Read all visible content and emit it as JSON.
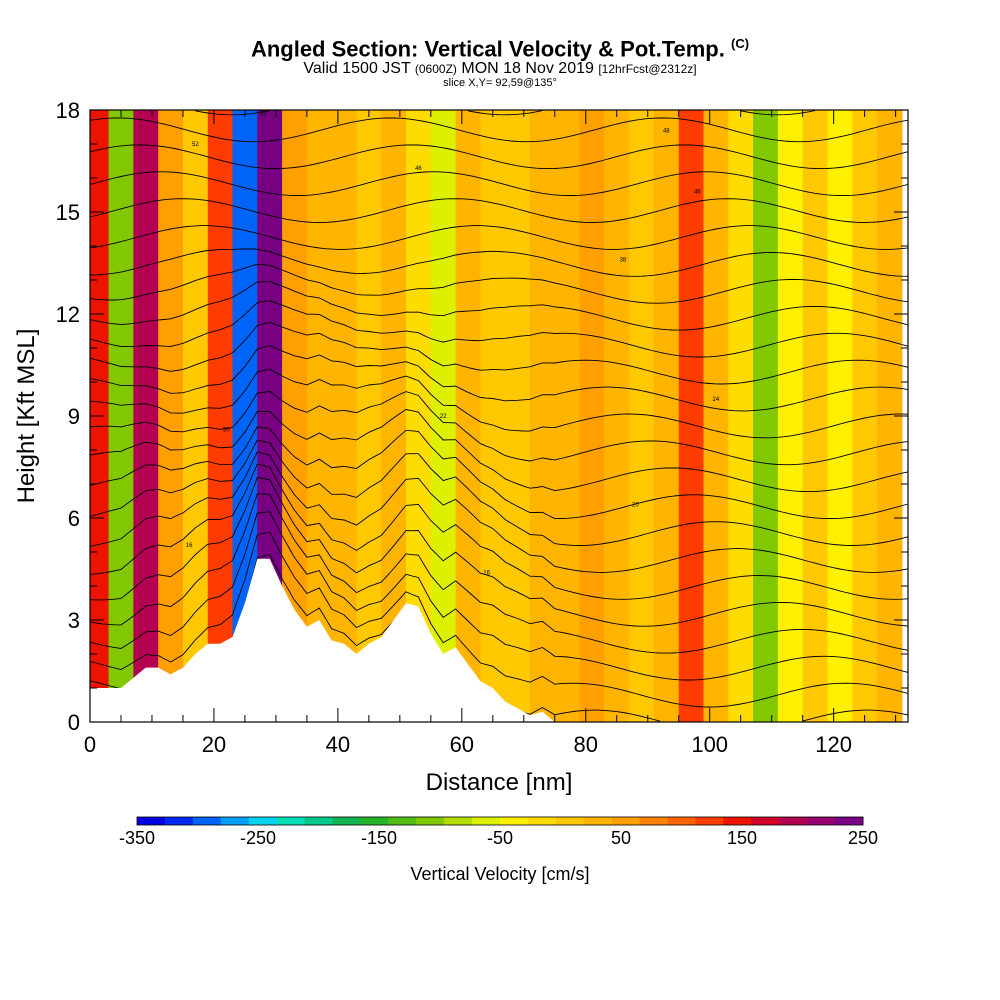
{
  "chart_data": {
    "type": "heatmap",
    "title": "Angled Section: Vertical Velocity & Pot.Temp.",
    "title_tag": "(C)",
    "subtitle_valid": "Valid 1500 JST",
    "subtitle_utc": "(0600Z)",
    "subtitle_date": "MON 18 Nov 2019",
    "subtitle_fcst": "[12hrFcst@2312z]",
    "slice": "slice X,Y= 92,59@135°",
    "xlabel": "Distance [nm]",
    "ylabel": "Height [Kft MSL]",
    "xlim": [
      0,
      132
    ],
    "ylim": [
      0,
      18
    ],
    "x_ticks": [
      0,
      20,
      40,
      60,
      80,
      100,
      120
    ],
    "y_ticks": [
      0,
      3,
      6,
      9,
      12,
      15,
      18
    ],
    "colorbar": {
      "label": "Vertical Velocity [cm/s]",
      "min": -350,
      "max": 250,
      "ticks": [
        -350,
        -250,
        -150,
        -50,
        50,
        150,
        250
      ],
      "colors": [
        "#0000e0",
        "#0028f0",
        "#0064f8",
        "#00a0f8",
        "#00d2f0",
        "#00dcb4",
        "#00c88c",
        "#10b450",
        "#28b428",
        "#50bc14",
        "#82c800",
        "#b4dc00",
        "#dcf000",
        "#fff000",
        "#ffdc00",
        "#ffc800",
        "#ffb400",
        "#ffa000",
        "#ff8200",
        "#ff6400",
        "#ff3c00",
        "#ec1400",
        "#d20028",
        "#b40050",
        "#96006e",
        "#780082"
      ]
    },
    "velocity_columns": [
      {
        "x": 1,
        "v": 150
      },
      {
        "x": 5,
        "v": -100
      },
      {
        "x": 9,
        "v": 190
      },
      {
        "x": 13,
        "v": 60
      },
      {
        "x": 17,
        "v": 0
      },
      {
        "x": 21,
        "v": 120
      },
      {
        "x": 25,
        "v": -300
      },
      {
        "x": 29,
        "v": 240
      },
      {
        "x": 33,
        "v": 60
      },
      {
        "x": 37,
        "v": 40
      },
      {
        "x": 41,
        "v": 30
      },
      {
        "x": 45,
        "v": 10
      },
      {
        "x": 49,
        "v": 20
      },
      {
        "x": 53,
        "v": -20
      },
      {
        "x": 57,
        "v": -60
      },
      {
        "x": 61,
        "v": 20
      },
      {
        "x": 65,
        "v": 0
      },
      {
        "x": 69,
        "v": 10
      },
      {
        "x": 73,
        "v": 20
      },
      {
        "x": 77,
        "v": 30
      },
      {
        "x": 81,
        "v": 60
      },
      {
        "x": 85,
        "v": 20
      },
      {
        "x": 89,
        "v": 0
      },
      {
        "x": 93,
        "v": 40
      },
      {
        "x": 97,
        "v": 120
      },
      {
        "x": 101,
        "v": 20
      },
      {
        "x": 105,
        "v": -20
      },
      {
        "x": 109,
        "v": -100
      },
      {
        "x": 113,
        "v": -30
      },
      {
        "x": 117,
        "v": 10
      },
      {
        "x": 121,
        "v": -40
      },
      {
        "x": 125,
        "v": 10
      },
      {
        "x": 129,
        "v": 20
      }
    ],
    "terrain": [
      {
        "x": 0,
        "z": 1.0
      },
      {
        "x": 5,
        "z": 1.0
      },
      {
        "x": 7,
        "z": 1.3
      },
      {
        "x": 9,
        "z": 1.6
      },
      {
        "x": 11,
        "z": 1.6
      },
      {
        "x": 13,
        "z": 1.4
      },
      {
        "x": 15,
        "z": 1.6
      },
      {
        "x": 17,
        "z": 2.0
      },
      {
        "x": 19,
        "z": 2.3
      },
      {
        "x": 21,
        "z": 2.3
      },
      {
        "x": 23,
        "z": 2.5
      },
      {
        "x": 25,
        "z": 3.5
      },
      {
        "x": 27,
        "z": 4.8
      },
      {
        "x": 29,
        "z": 4.8
      },
      {
        "x": 31,
        "z": 4.0
      },
      {
        "x": 33,
        "z": 3.3
      },
      {
        "x": 35,
        "z": 2.8
      },
      {
        "x": 37,
        "z": 3.0
      },
      {
        "x": 39,
        "z": 2.4
      },
      {
        "x": 41,
        "z": 2.3
      },
      {
        "x": 43,
        "z": 2.0
      },
      {
        "x": 45,
        "z": 2.3
      },
      {
        "x": 47,
        "z": 2.5
      },
      {
        "x": 49,
        "z": 3.0
      },
      {
        "x": 51,
        "z": 3.5
      },
      {
        "x": 53,
        "z": 3.4
      },
      {
        "x": 55,
        "z": 2.6
      },
      {
        "x": 57,
        "z": 2.0
      },
      {
        "x": 59,
        "z": 2.2
      },
      {
        "x": 61,
        "z": 1.7
      },
      {
        "x": 63,
        "z": 1.2
      },
      {
        "x": 65,
        "z": 1.0
      },
      {
        "x": 67,
        "z": 0.6
      },
      {
        "x": 69,
        "z": 0.4
      },
      {
        "x": 71,
        "z": 0.2
      },
      {
        "x": 73,
        "z": 0.3
      },
      {
        "x": 75,
        "z": 0.0
      },
      {
        "x": 132,
        "z": 0.0
      }
    ],
    "isentropes": {
      "theta_min": 10,
      "theta_max": 58,
      "theta_step": 2,
      "contour_labels": [
        {
          "x": 16,
          "z": 5.2,
          "text": "16"
        },
        {
          "x": 17,
          "z": 17.0,
          "text": "52"
        },
        {
          "x": 22,
          "z": 8.6,
          "text": "30"
        },
        {
          "x": 28,
          "z": 17.9,
          "text": "52"
        },
        {
          "x": 53,
          "z": 16.3,
          "text": "46"
        },
        {
          "x": 57,
          "z": 9.0,
          "text": "22"
        },
        {
          "x": 64,
          "z": 4.4,
          "text": "16"
        },
        {
          "x": 86,
          "z": 13.6,
          "text": "38"
        },
        {
          "x": 93,
          "z": 17.4,
          "text": "48"
        },
        {
          "x": 98,
          "z": 15.6,
          "text": "46"
        },
        {
          "x": 101,
          "z": 9.5,
          "text": "24"
        },
        {
          "x": 88,
          "z": 6.4,
          "text": "20"
        }
      ]
    }
  }
}
